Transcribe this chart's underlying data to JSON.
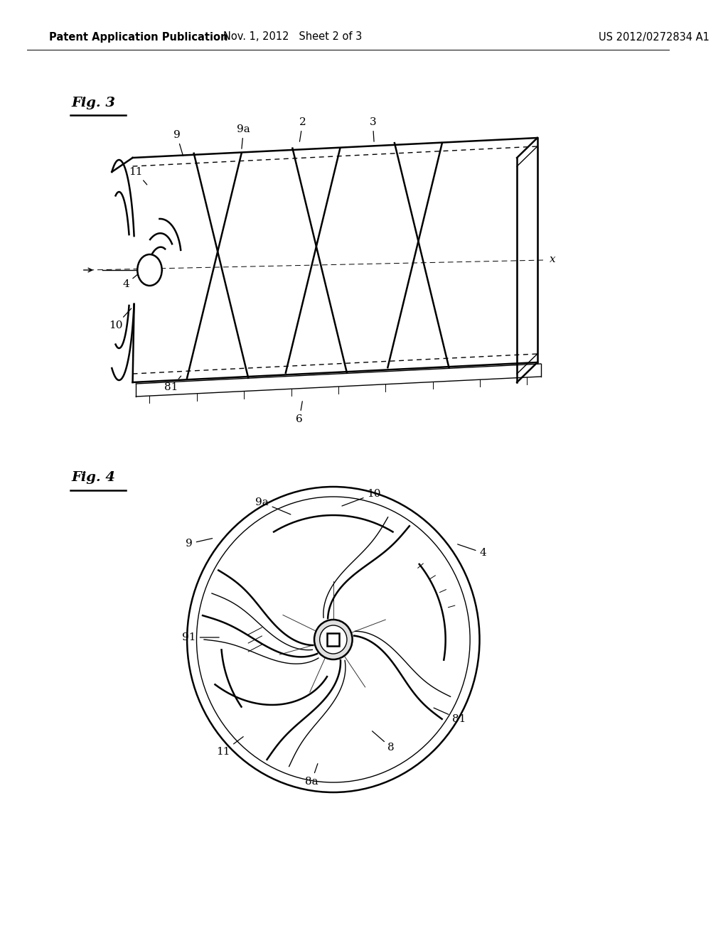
{
  "bg_color": "#ffffff",
  "header_left": "Patent Application Publication",
  "header_mid": "Nov. 1, 2012   Sheet 2 of 3",
  "header_right": "US 2012/0272834 A1",
  "fig3_label": "Fig. 3",
  "fig4_label": "Fig. 4",
  "line_color": "#000000",
  "font_size_header": 10.5,
  "font_size_label": 14,
  "font_size_annotation": 11
}
